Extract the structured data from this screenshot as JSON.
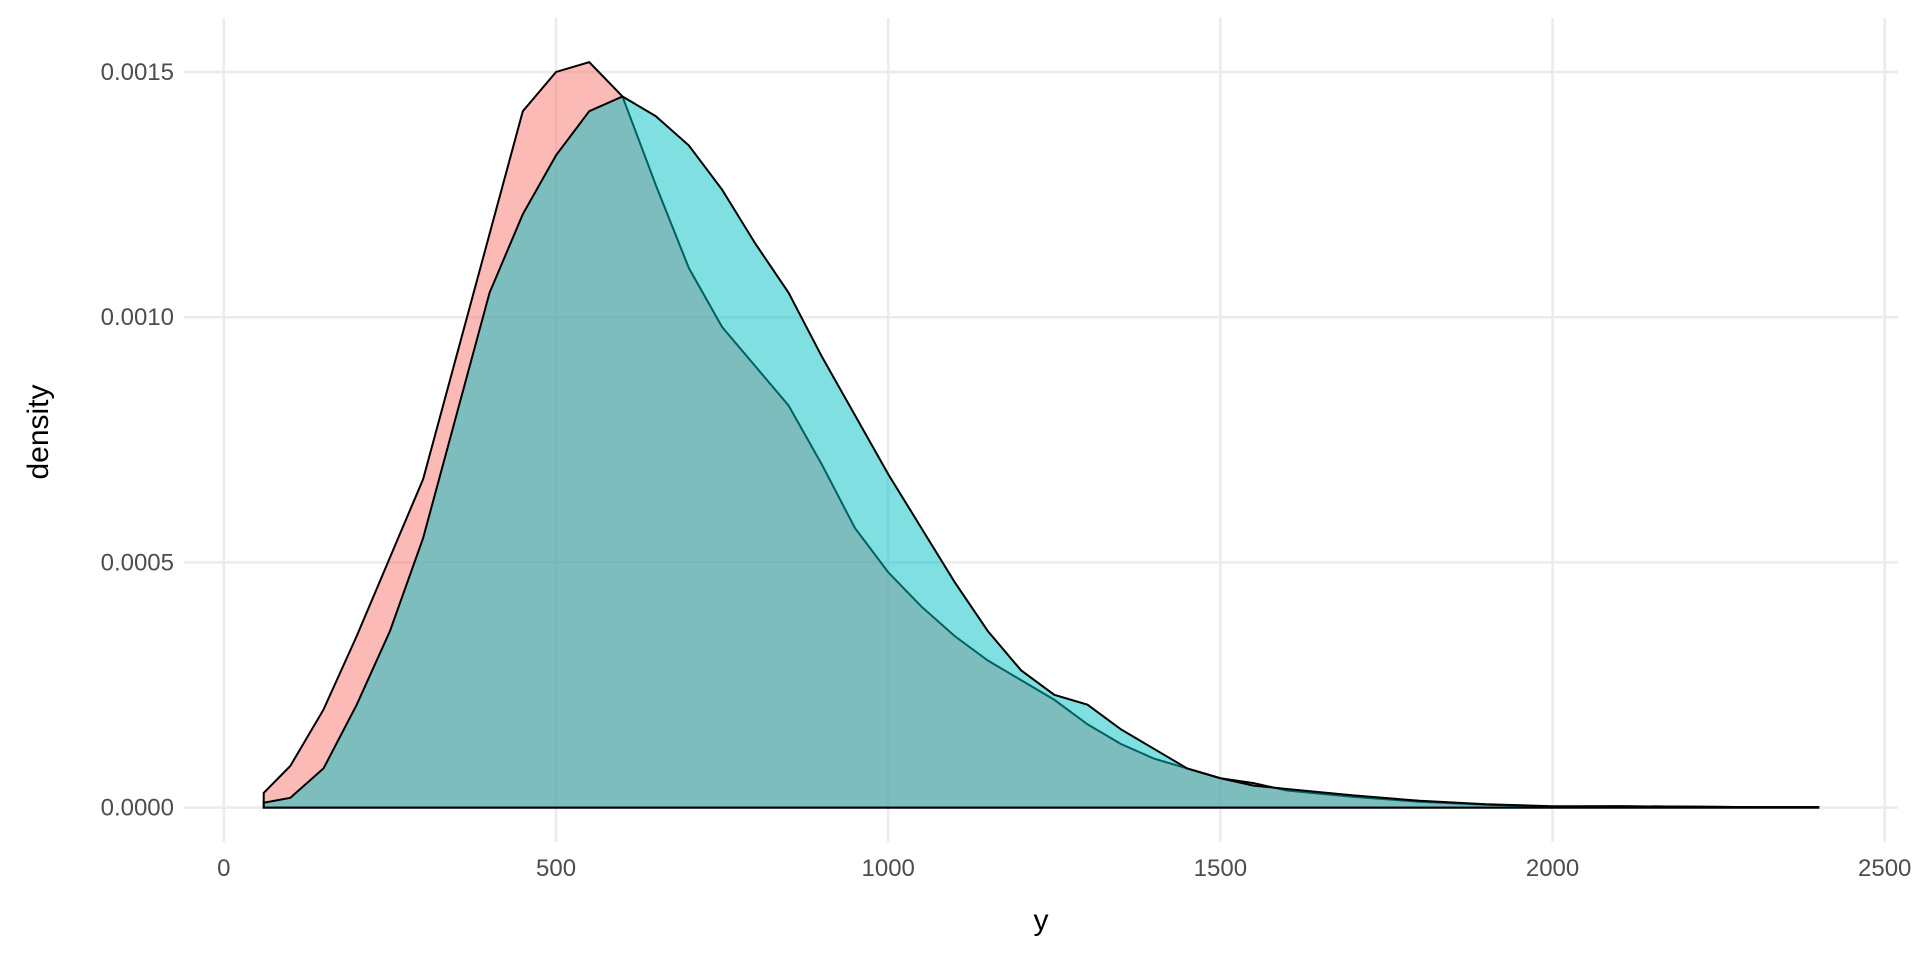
{
  "chart_data": {
    "type": "density",
    "x_label": "y",
    "y_label": "density",
    "x": [
      60,
      100,
      150,
      200,
      250,
      300,
      350,
      400,
      450,
      500,
      550,
      600,
      650,
      700,
      750,
      800,
      850,
      900,
      950,
      1000,
      1050,
      1100,
      1150,
      1200,
      1250,
      1300,
      1350,
      1400,
      1450,
      1500,
      1550,
      1600,
      1700,
      1800,
      1900,
      2000,
      2100,
      2200,
      2300,
      2400
    ],
    "series": [
      {
        "color": "#F8766D",
        "values": [
          3e-05,
          8.5e-05,
          0.0002,
          0.00035,
          0.00051,
          0.00067,
          0.00092,
          0.00117,
          0.00142,
          0.0015,
          0.00152,
          0.00145,
          0.00127,
          0.0011,
          0.00098,
          0.0009,
          0.00082,
          0.0007,
          0.00057,
          0.00048,
          0.00041,
          0.00035,
          0.0003,
          0.00026,
          0.00022,
          0.00017,
          0.00013,
          0.0001,
          8e-05,
          6e-05,
          5e-05,
          3.5e-05,
          2.2e-05,
          1.2e-05,
          6e-06,
          2e-06,
          3e-06,
          2e-06,
          1e-06,
          1e-06
        ]
      },
      {
        "color": "#00BFC4",
        "values": [
          1e-05,
          2e-05,
          8e-05,
          0.00021,
          0.00036,
          0.00055,
          0.0008,
          0.00105,
          0.00121,
          0.00133,
          0.00142,
          0.00145,
          0.00141,
          0.00135,
          0.00126,
          0.00115,
          0.00105,
          0.00092,
          0.0008,
          0.00068,
          0.00057,
          0.00046,
          0.00036,
          0.00028,
          0.00023,
          0.00021,
          0.00016,
          0.00012,
          8e-05,
          6e-05,
          4.5e-05,
          3.8e-05,
          2.5e-05,
          1.4e-05,
          7e-06,
          3e-06,
          3e-06,
          2e-06,
          1e-06,
          1e-06
        ]
      }
    ],
    "xlim": [
      -60,
      2520
    ],
    "xticks": [
      0,
      500,
      1000,
      1500,
      2000,
      2500
    ],
    "ylim": [
      -7e-05,
      0.00161
    ],
    "yticks": [
      {
        "value": 0,
        "label": "0.0000"
      },
      {
        "value": 0.0005,
        "label": "0.0005"
      },
      {
        "value": 0.001,
        "label": "0.0010"
      },
      {
        "value": 0.0015,
        "label": "0.0015"
      }
    ],
    "grid": true,
    "fill_opacity": 0.5
  }
}
